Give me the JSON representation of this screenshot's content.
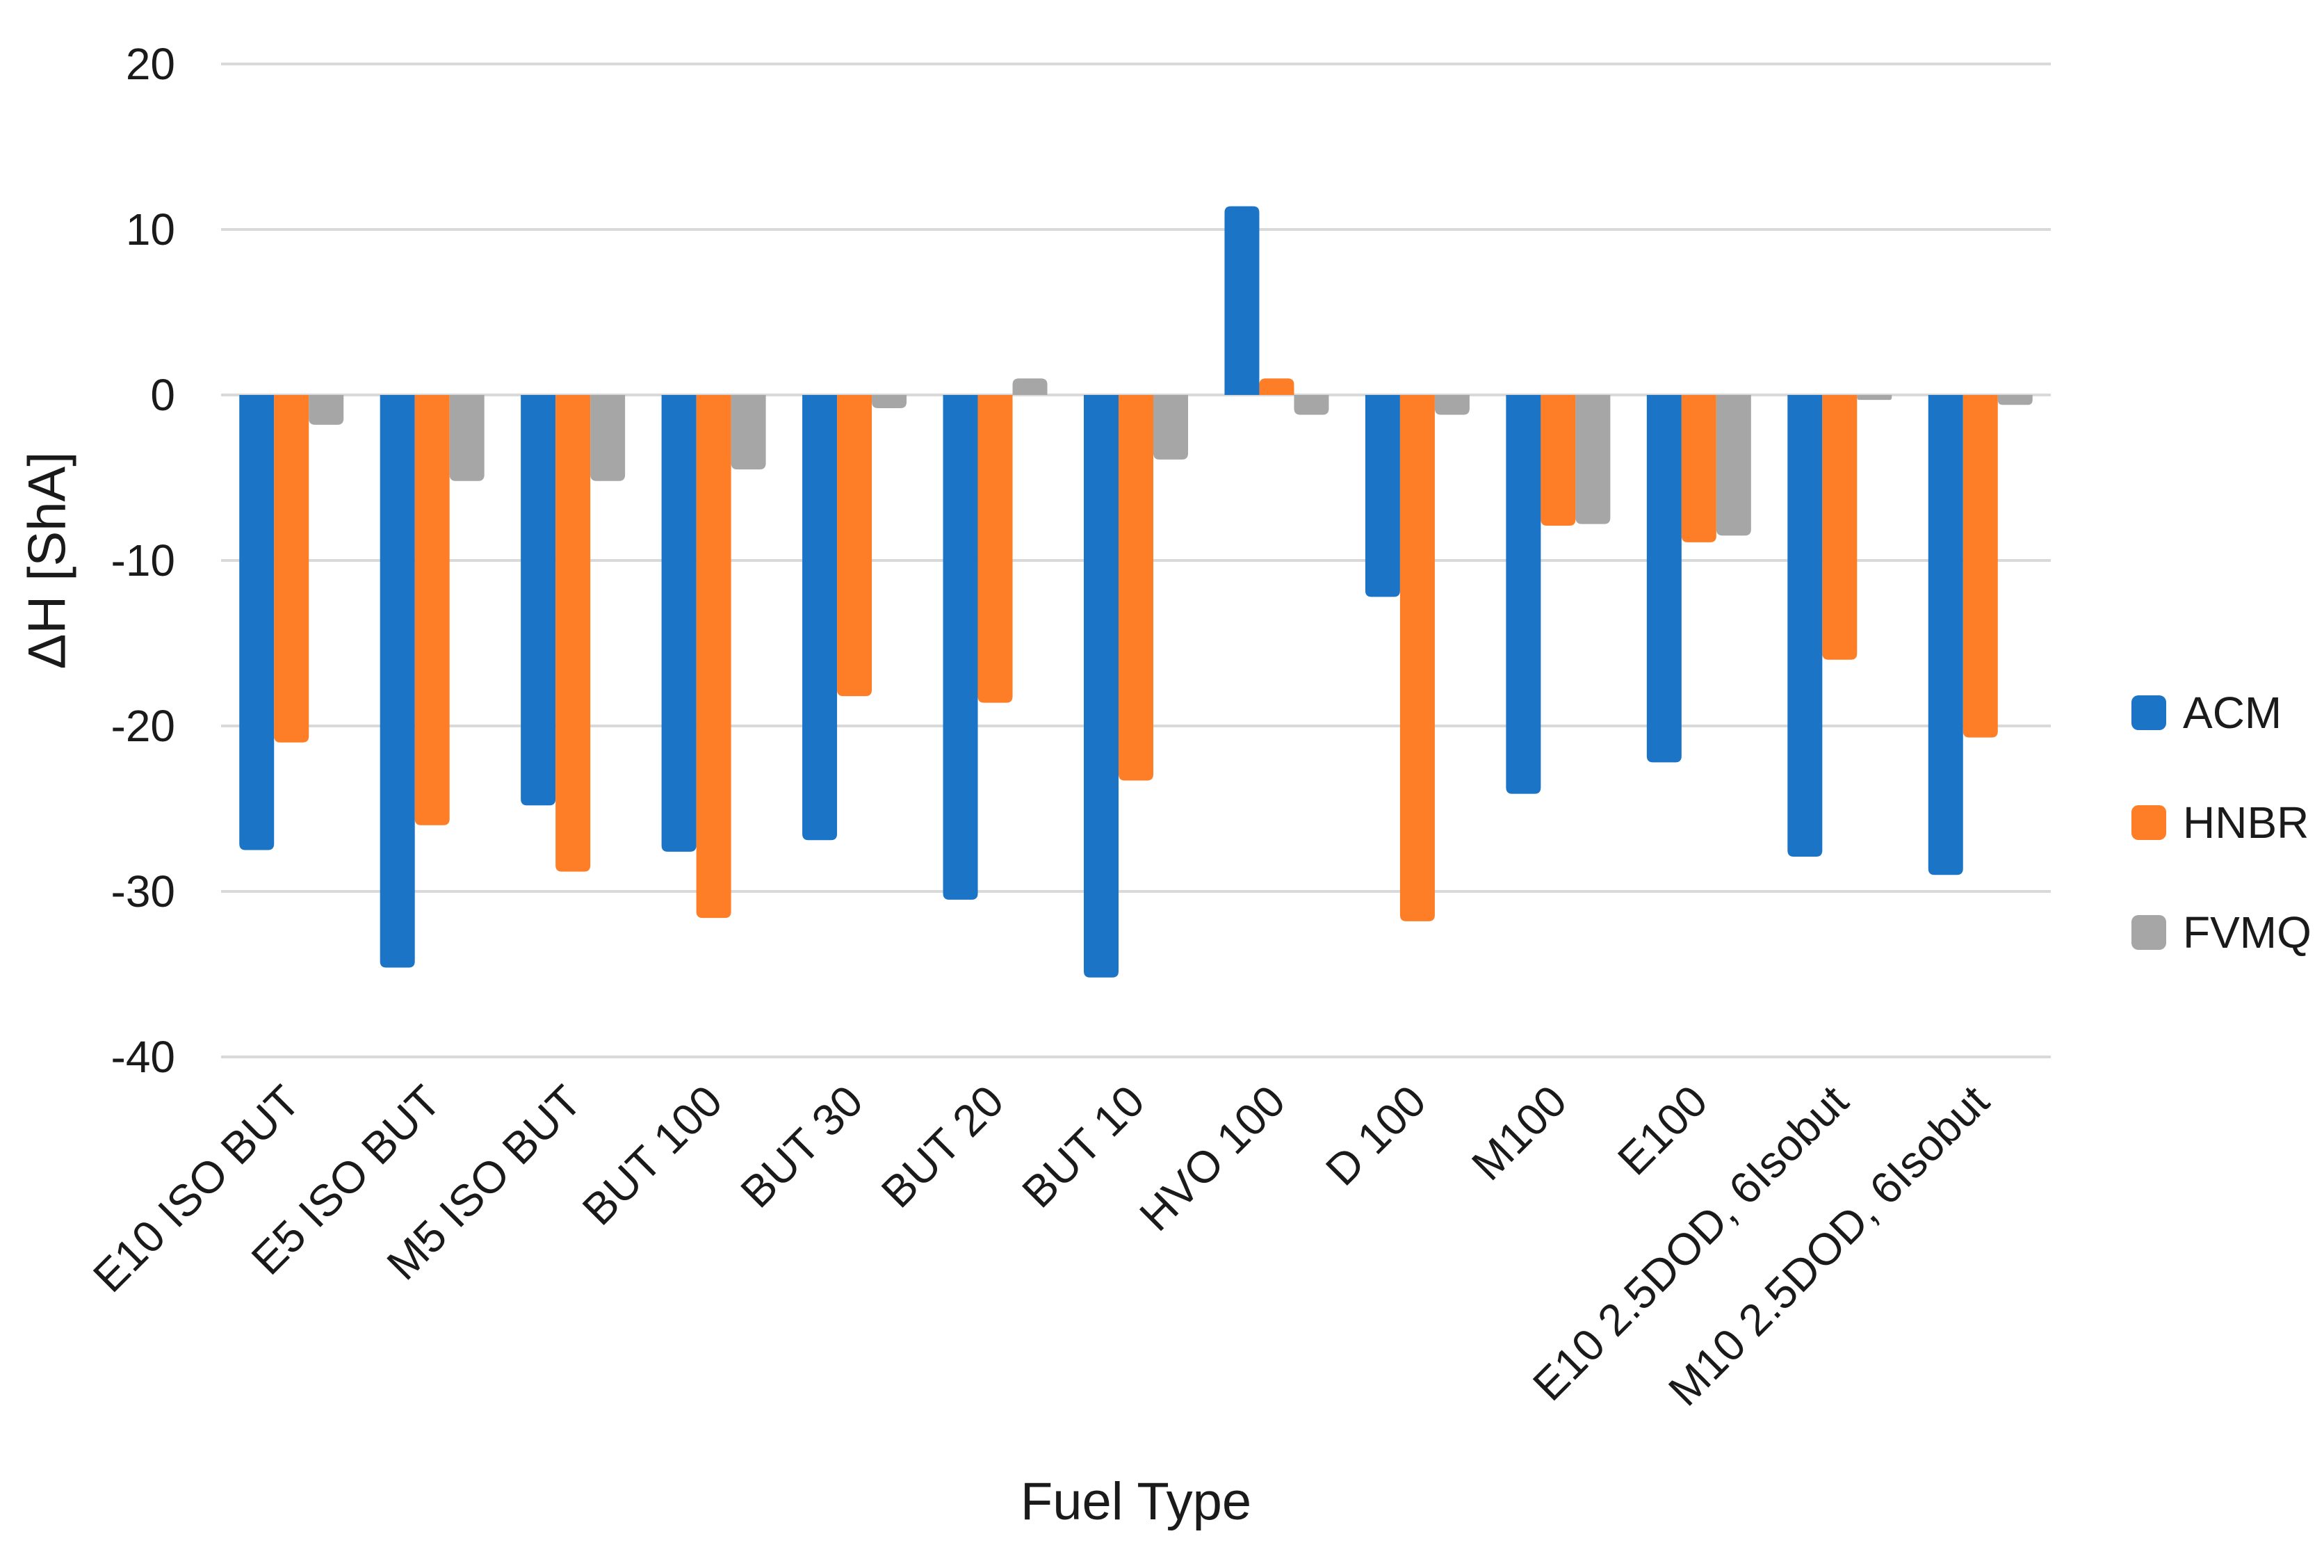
{
  "chart_data": {
    "type": "bar",
    "title": "",
    "xlabel": "Fuel Type",
    "ylabel": "ΔH [ShA]",
    "ylim": [
      -40,
      20
    ],
    "yticks": [
      20,
      10,
      0,
      -10,
      -20,
      -30,
      -40
    ],
    "grid": true,
    "grid_color": "#D9D9D9",
    "legend_position": "right",
    "categories": [
      "E10 ISO BUT",
      "E5 ISO BUT",
      "M5 ISO BUT",
      "BUT 100",
      "BUT 30",
      "BUT 20",
      "BUT 10",
      "HVO 100",
      "D 100",
      "M100",
      "E100",
      "E10 2.5DOD, 6Isobut",
      "M10 2.5DOD, 6Isobut"
    ],
    "series": [
      {
        "name": "ACM",
        "color": "#1B74C6",
        "values": [
          -27.5,
          -34.6,
          -24.8,
          -27.6,
          -26.9,
          -30.5,
          -35.2,
          11.4,
          -12.2,
          -24.1,
          -22.2,
          -27.9,
          -29.0
        ]
      },
      {
        "name": "HNBR",
        "color": "#FD7E26",
        "values": [
          -21.0,
          -26.0,
          -28.8,
          -31.6,
          -18.2,
          -18.6,
          -23.3,
          1.0,
          -31.8,
          -7.9,
          -8.9,
          -16.0,
          -20.7
        ]
      },
      {
        "name": "FVMQ",
        "color": "#A6A6A6",
        "values": [
          -1.8,
          -5.2,
          -5.2,
          -4.5,
          -0.8,
          1.0,
          -3.9,
          -1.2,
          -1.2,
          -7.8,
          -8.5,
          -0.3,
          -0.6
        ]
      }
    ]
  },
  "colors": {
    "background": "#FFFFFF",
    "grid": "#D9D9D9",
    "text": "#1A1A1A"
  }
}
